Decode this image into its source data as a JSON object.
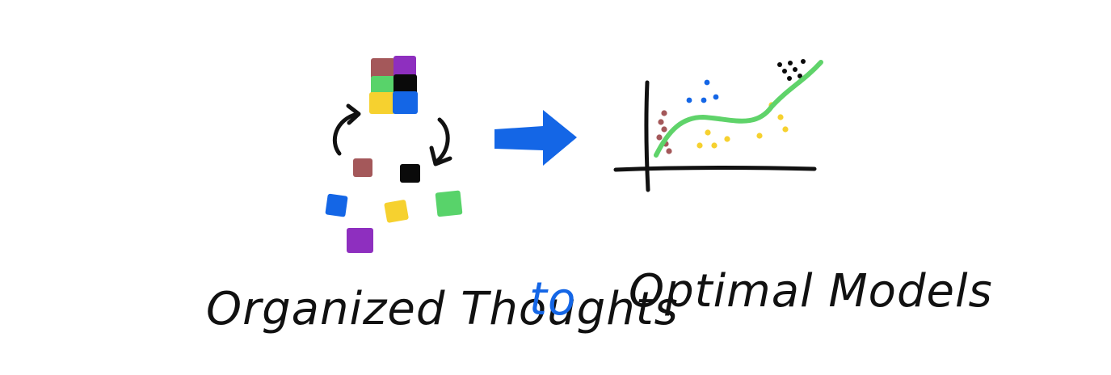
{
  "captions": {
    "left": "Organized Thoughts",
    "middle": "to",
    "right": "Optimal Models"
  },
  "colors": {
    "brown": "#a4585a",
    "purple": "#8e2fbf",
    "green": "#58d36a",
    "black": "#0a0a0a",
    "yellow": "#f6d12f",
    "blue": "#1466e6",
    "ink": "#111111",
    "curve": "#5fd36a"
  },
  "icons": {
    "left": "scattered-squares-icon",
    "arrow": "right-arrow-icon",
    "right": "fitted-curve-plot-icon"
  }
}
